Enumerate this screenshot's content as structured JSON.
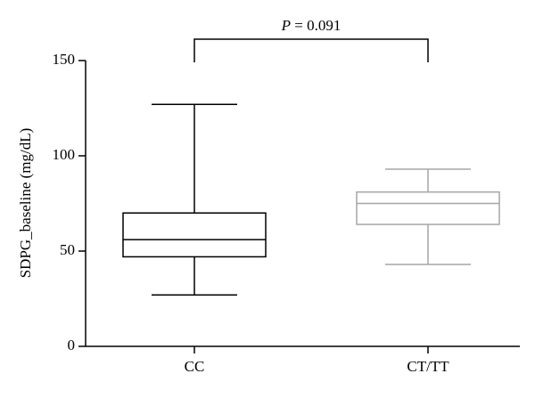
{
  "chart_data": {
    "type": "box",
    "y_label": "SDPG_baseline (mg/dL)",
    "categories": [
      "CC",
      "CT/TT"
    ],
    "boxes": [
      {
        "min": 27,
        "q1": 47,
        "median": 56,
        "q3": 70,
        "max": 127,
        "color": "#000000"
      },
      {
        "min": 43,
        "q1": 64,
        "median": 75,
        "q3": 81,
        "max": 93,
        "color": "#a6a6a6"
      }
    ],
    "ylim": [
      0,
      150
    ],
    "yticks": [
      0,
      50,
      100,
      150
    ],
    "annotation": {
      "symbol": "P",
      "text": "= 0.091"
    }
  }
}
